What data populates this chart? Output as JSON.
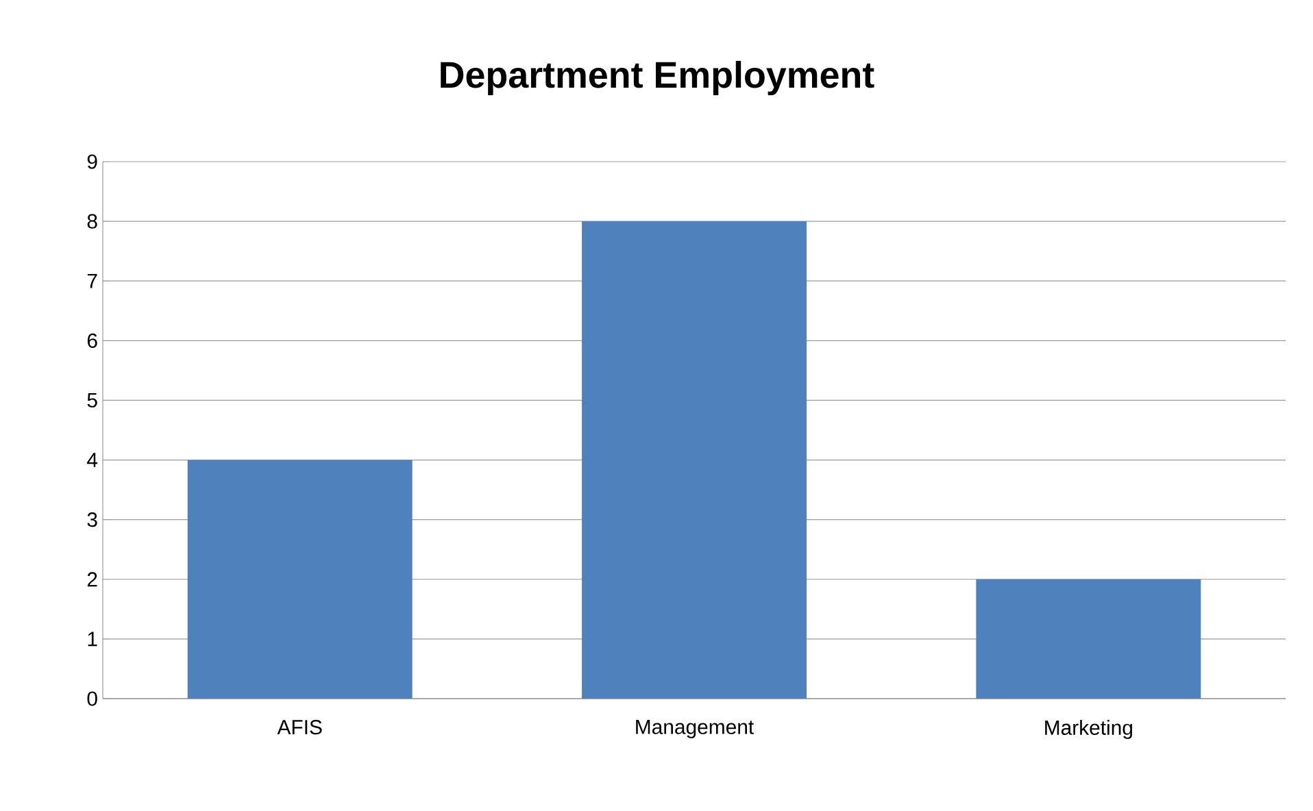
{
  "chart_data": {
    "type": "bar",
    "title": "Department Employment",
    "categories": [
      "AFIS",
      "Management",
      "Marketing"
    ],
    "values": [
      4,
      8,
      2
    ],
    "color": "#4f81bd",
    "ylim": [
      0,
      9
    ],
    "yticks": [
      0,
      1,
      2,
      3,
      4,
      5,
      6,
      7,
      8,
      9
    ],
    "grid": "y"
  }
}
